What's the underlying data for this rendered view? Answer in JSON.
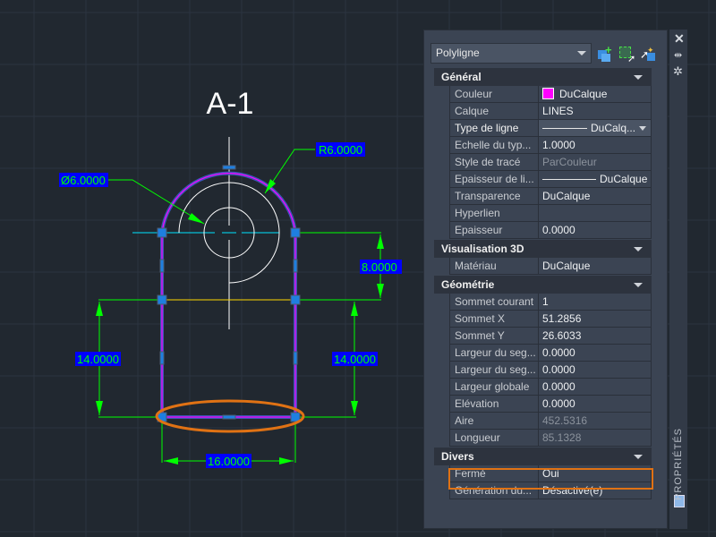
{
  "drawing": {
    "title": "A-1",
    "dims": {
      "diameter": "Ø6.0000",
      "radius": "R6.0000",
      "height_upper": "8.0000",
      "height_left": "14.0000",
      "height_right": "14.0000",
      "width": "16.0000"
    },
    "colors": {
      "background": "#212830",
      "polyline": "#ff00ff",
      "grips": "#1e7fe0",
      "dimension": "#00ff00",
      "dim_text_bg": "#0000ff",
      "centerline": "#00e5ff",
      "highlight": "#e07214"
    }
  },
  "panel": {
    "title": "PROPRIÉTÉS",
    "object_type": "Polyligne",
    "categories": [
      {
        "name": "Général",
        "rows": [
          {
            "k": "Couleur",
            "v": "DuCalque"
          },
          {
            "k": "Calque",
            "v": "LINES"
          },
          {
            "k": "Type de ligne",
            "v": "DuCalq..."
          },
          {
            "k": "Echelle du typ...",
            "v": "1.0000"
          },
          {
            "k": "Style de tracé",
            "v": "ParCouleur"
          },
          {
            "k": "Epaisseur de li...",
            "v": "DuCalque"
          },
          {
            "k": "Transparence",
            "v": "DuCalque"
          },
          {
            "k": "Hyperlien",
            "v": ""
          },
          {
            "k": "Epaisseur",
            "v": "0.0000"
          }
        ]
      },
      {
        "name": "Visualisation 3D",
        "rows": [
          {
            "k": "Matériau",
            "v": "DuCalque"
          }
        ]
      },
      {
        "name": "Géométrie",
        "rows": [
          {
            "k": "Sommet courant",
            "v": "1"
          },
          {
            "k": "Sommet X",
            "v": "51.2856"
          },
          {
            "k": "Sommet Y",
            "v": "26.6033"
          },
          {
            "k": "Largeur du seg...",
            "v": "0.0000"
          },
          {
            "k": "Largeur du seg...",
            "v": "0.0000"
          },
          {
            "k": "Largeur globale",
            "v": "0.0000"
          },
          {
            "k": "Elévation",
            "v": "0.0000"
          },
          {
            "k": "Aire",
            "v": "452.5316"
          },
          {
            "k": "Longueur",
            "v": "85.1328"
          }
        ]
      },
      {
        "name": "Divers",
        "rows": [
          {
            "k": "Fermé",
            "v": "Oui"
          },
          {
            "k": "Génération du...",
            "v": "Désactivé(e)"
          }
        ]
      }
    ]
  }
}
